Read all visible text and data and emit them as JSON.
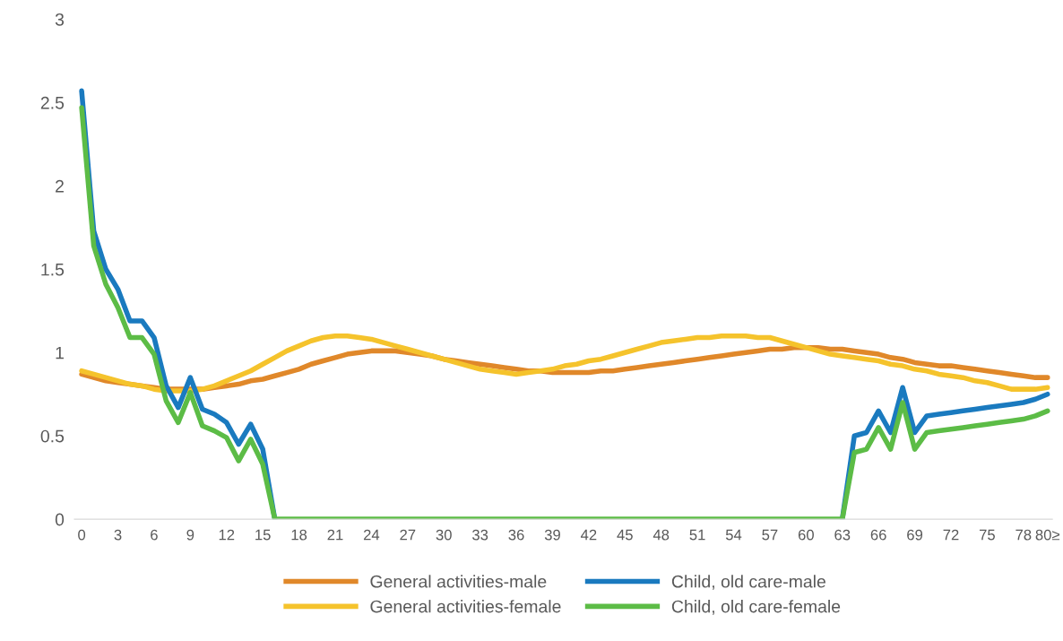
{
  "chart_data": {
    "type": "line",
    "categories": [
      "0",
      null,
      null,
      "3",
      null,
      null,
      "6",
      null,
      null,
      "9",
      null,
      null,
      "12",
      null,
      null,
      "15",
      null,
      null,
      "18",
      null,
      null,
      "21",
      null,
      null,
      "24",
      null,
      null,
      "27",
      null,
      null,
      "30",
      null,
      null,
      "33",
      null,
      null,
      "36",
      null,
      null,
      "39",
      null,
      null,
      "42",
      null,
      null,
      "45",
      null,
      null,
      "48",
      null,
      null,
      "51",
      null,
      null,
      "54",
      null,
      null,
      "57",
      null,
      null,
      "60",
      null,
      null,
      "63",
      null,
      null,
      "66",
      null,
      null,
      "69",
      null,
      null,
      "72",
      null,
      null,
      "75",
      null,
      null,
      "78",
      null,
      "80≥"
    ],
    "ylim": [
      0,
      3
    ],
    "yticks": [
      0,
      0.5,
      1,
      1.5,
      2,
      2.5,
      3
    ],
    "grid": false,
    "legend": "bottom",
    "line_style": "solid",
    "marker": "none",
    "series": [
      {
        "name": "General activities-male",
        "color": "#e0882a",
        "values": [
          0.87,
          0.85,
          0.83,
          0.82,
          0.81,
          0.8,
          0.79,
          0.78,
          0.78,
          0.78,
          0.78,
          0.79,
          0.8,
          0.81,
          0.83,
          0.84,
          0.86,
          0.88,
          0.9,
          0.93,
          0.95,
          0.97,
          0.99,
          1.0,
          1.01,
          1.01,
          1.01,
          1.0,
          0.99,
          0.98,
          0.96,
          0.95,
          0.94,
          0.93,
          0.92,
          0.91,
          0.9,
          0.89,
          0.89,
          0.88,
          0.88,
          0.88,
          0.88,
          0.89,
          0.89,
          0.9,
          0.91,
          0.92,
          0.93,
          0.94,
          0.95,
          0.96,
          0.97,
          0.98,
          0.99,
          1.0,
          1.01,
          1.02,
          1.02,
          1.03,
          1.03,
          1.03,
          1.02,
          1.02,
          1.01,
          1.0,
          0.99,
          0.97,
          0.96,
          0.94,
          0.93,
          0.92,
          0.92,
          0.91,
          0.9,
          0.89,
          0.88,
          0.87,
          0.86,
          0.85,
          0.85
        ]
      },
      {
        "name": "General activities-female",
        "color": "#f5c32c",
        "values": [
          0.89,
          0.87,
          0.85,
          0.83,
          0.81,
          0.8,
          0.78,
          0.77,
          0.77,
          0.77,
          0.78,
          0.8,
          0.83,
          0.86,
          0.89,
          0.93,
          0.97,
          1.01,
          1.04,
          1.07,
          1.09,
          1.1,
          1.1,
          1.09,
          1.08,
          1.06,
          1.04,
          1.02,
          1.0,
          0.98,
          0.96,
          0.94,
          0.92,
          0.9,
          0.89,
          0.88,
          0.87,
          0.88,
          0.89,
          0.9,
          0.92,
          0.93,
          0.95,
          0.96,
          0.98,
          1.0,
          1.02,
          1.04,
          1.06,
          1.07,
          1.08,
          1.09,
          1.09,
          1.1,
          1.1,
          1.1,
          1.09,
          1.09,
          1.07,
          1.05,
          1.03,
          1.01,
          0.99,
          0.98,
          0.97,
          0.96,
          0.95,
          0.93,
          0.92,
          0.9,
          0.89,
          0.87,
          0.86,
          0.85,
          0.83,
          0.82,
          0.8,
          0.78,
          0.78,
          0.78,
          0.79
        ]
      },
      {
        "name": "Child, old care-male",
        "color": "#1a7abf",
        "values": [
          2.57,
          1.73,
          1.5,
          1.38,
          1.19,
          1.19,
          1.09,
          0.8,
          0.67,
          0.85,
          0.66,
          0.63,
          0.58,
          0.45,
          0.57,
          0.42,
          0,
          null,
          null,
          null,
          null,
          null,
          null,
          null,
          null,
          null,
          null,
          null,
          null,
          null,
          null,
          null,
          null,
          null,
          null,
          null,
          null,
          null,
          null,
          null,
          null,
          null,
          null,
          null,
          null,
          null,
          null,
          null,
          null,
          null,
          null,
          null,
          null,
          null,
          null,
          null,
          null,
          null,
          null,
          null,
          null,
          null,
          null,
          0,
          0.5,
          0.52,
          0.65,
          0.52,
          0.79,
          0.52,
          0.62,
          0.63,
          0.64,
          0.65,
          0.66,
          0.67,
          0.68,
          0.69,
          0.7,
          0.72,
          0.75
        ]
      },
      {
        "name": "Child, old care-female",
        "color": "#5cbc46",
        "values": [
          2.47,
          1.64,
          1.41,
          1.27,
          1.09,
          1.09,
          0.99,
          0.71,
          0.58,
          0.76,
          0.56,
          0.53,
          0.49,
          0.35,
          0.48,
          0.33,
          0,
          0,
          0,
          0,
          0,
          0,
          0,
          0,
          0,
          0,
          0,
          0,
          0,
          0,
          0,
          0,
          0,
          0,
          0,
          0,
          0,
          0,
          0,
          0,
          0,
          0,
          0,
          0,
          0,
          0,
          0,
          0,
          0,
          0,
          0,
          0,
          0,
          0,
          0,
          0,
          0,
          0,
          0,
          0,
          0,
          0,
          0,
          0,
          0.4,
          0.42,
          0.55,
          0.42,
          0.7,
          0.42,
          0.52,
          0.53,
          0.54,
          0.55,
          0.56,
          0.57,
          0.58,
          0.59,
          0.6,
          0.62,
          0.65
        ]
      }
    ]
  }
}
